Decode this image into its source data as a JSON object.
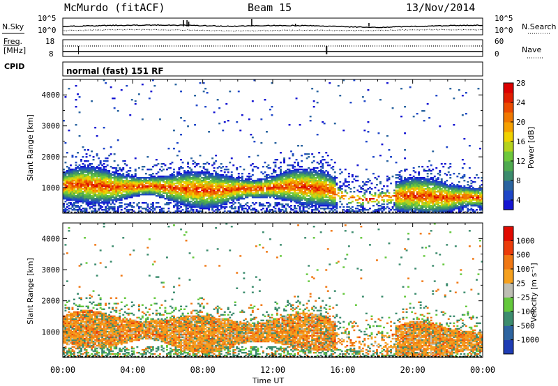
{
  "header": {
    "station": "McMurdo (fitACF)",
    "beam": "Beam 15",
    "date": "13/Nov/2014"
  },
  "sky_panel": {
    "left_label": "N.Sky",
    "right_label": "N.Search",
    "left_ticks": [
      "10^5",
      "10^0"
    ],
    "right_ticks": [
      "10^5",
      "10^0"
    ]
  },
  "freq_panel": {
    "left_label_line1": "Freq.",
    "left_label_line2": "[MHz]",
    "right_label": "Nave",
    "left_ticks": [
      "18",
      "8"
    ],
    "right_ticks": [
      "60",
      "0"
    ]
  },
  "cpid": {
    "label": "CPID",
    "text": "normal (fast) 151 RF"
  },
  "chart_data": [
    {
      "type": "heatmap",
      "title": "",
      "xlabel": "Time UT",
      "ylabel": "Slant Range [km]",
      "xlim_hours": [
        0,
        24
      ],
      "ylim_km": [
        180,
        4500
      ],
      "yticks": [
        "1000",
        "2000",
        "3000",
        "4000"
      ],
      "xticks": [
        "00:00",
        "04:00",
        "08:00",
        "12:00",
        "16:00",
        "20:00",
        "00:00"
      ],
      "colorbar": {
        "label": "Power [dB]",
        "ticks": [
          "4",
          "8",
          "12",
          "16",
          "20",
          "24",
          "28"
        ],
        "colors": [
          "#1414d2",
          "#1e46c8",
          "#2a64a0",
          "#3c8c6e",
          "#4faa50",
          "#6ec83c",
          "#b4d21e",
          "#f0d200",
          "#f5a000",
          "#f07800",
          "#eb4b00",
          "#e11e00",
          "#dc0000"
        ]
      },
      "band_centers_km": [
        [
          0,
          1050
        ],
        [
          1,
          1100
        ],
        [
          2,
          1050
        ],
        [
          3,
          1000
        ],
        [
          4,
          1020
        ],
        [
          5,
          1050
        ],
        [
          6,
          980
        ],
        [
          7,
          950
        ],
        [
          8,
          900
        ],
        [
          9,
          900
        ],
        [
          10,
          950
        ],
        [
          11,
          950
        ],
        [
          12,
          1000
        ],
        [
          13,
          1050
        ],
        [
          14,
          1000
        ],
        [
          15,
          950
        ],
        [
          16,
          700
        ],
        [
          17,
          600
        ],
        [
          18,
          650
        ],
        [
          19,
          700
        ],
        [
          20,
          750
        ],
        [
          21,
          700
        ],
        [
          22,
          650
        ],
        [
          23,
          700
        ],
        [
          24,
          650
        ]
      ]
    },
    {
      "type": "heatmap",
      "title": "",
      "xlabel": "Time UT",
      "ylabel": "Slant Range [km]",
      "xlim_hours": [
        0,
        24
      ],
      "ylim_km": [
        180,
        4500
      ],
      "yticks": [
        "1000",
        "2000",
        "3000",
        "4000"
      ],
      "xticks": [
        "00:00",
        "04:00",
        "08:00",
        "12:00",
        "16:00",
        "20:00",
        "00:00"
      ],
      "colorbar": {
        "label": "Velocity [m s⁻¹]",
        "ticks": [
          "1000",
          "500",
          "100",
          "25",
          "-25",
          "-100",
          "-500",
          "-1000"
        ],
        "colors": [
          "#1e3cb4",
          "#2d64a0",
          "#3c8c6e",
          "#64c83c",
          "#bebeb4",
          "#f5a01e",
          "#f07814",
          "#eb3c0a",
          "#e10a00"
        ]
      }
    }
  ]
}
